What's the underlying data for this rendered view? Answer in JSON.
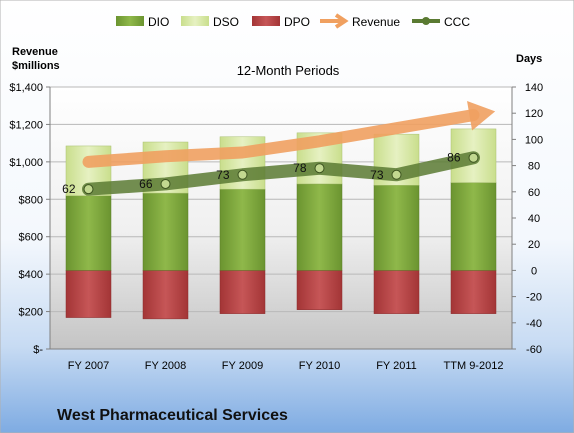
{
  "company_name": "West Pharmaceutical Services",
  "chart_data": {
    "type": "bar",
    "title": "12-Month Periods",
    "categories": [
      "FY 2007",
      "FY 2008",
      "FY 2009",
      "FY 2010",
      "FY 2011",
      "TTM 9-2012"
    ],
    "ylabel_left": "Revenue $millions",
    "ylabel_right": "Days",
    "left_axis": {
      "range": [
        0,
        1400
      ],
      "ticks": [
        0,
        200,
        400,
        600,
        800,
        1000,
        1200,
        1400
      ],
      "tick_labels": [
        "$-",
        "$200",
        "$400",
        "$600",
        "$800",
        "$1,000",
        "$1,200",
        "$1,400"
      ]
    },
    "right_axis": {
      "range": [
        -60,
        140
      ],
      "ticks": [
        -60,
        -40,
        -20,
        0,
        20,
        40,
        60,
        80,
        100,
        120,
        140
      ],
      "tick_labels": [
        "-60",
        "-40",
        "-20",
        "0",
        "20",
        "40",
        "60",
        "80",
        "100",
        "120",
        "140"
      ]
    },
    "legend": {
      "position": "top"
    },
    "series": [
      {
        "name": "DIO",
        "axis": "right",
        "kind": "stacked-bar",
        "values": [
          57,
          59,
          62,
          66,
          65,
          67
        ],
        "color": "#7ea63a"
      },
      {
        "name": "DSO",
        "axis": "right",
        "kind": "stacked-bar",
        "values": [
          38,
          39,
          40,
          39,
          39,
          41
        ],
        "color": "#d6e8a4"
      },
      {
        "name": "DPO",
        "axis": "right",
        "kind": "bar-below-zero",
        "values": [
          -36,
          -37,
          -33,
          -30,
          -33,
          -33
        ],
        "color": "#b84445"
      },
      {
        "name": "Revenue",
        "axis": "left",
        "kind": "line-arrow",
        "values": [
          1000,
          1030,
          1050,
          1110,
          1180,
          1250
        ],
        "color": "#f0a060"
      },
      {
        "name": "CCC",
        "axis": "right",
        "kind": "line",
        "values": [
          62,
          66,
          73,
          78,
          73,
          86
        ],
        "color": "#5a7a32",
        "labels": [
          "62",
          "66",
          "73",
          "78",
          "73",
          "86"
        ]
      }
    ]
  }
}
